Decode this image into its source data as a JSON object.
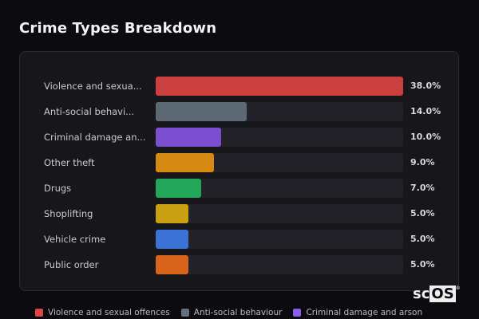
{
  "header": {
    "title": "Crime Types Breakdown"
  },
  "chart_data": {
    "type": "bar",
    "orientation": "horizontal",
    "title": "Crime Types Breakdown",
    "categories": [
      "Violence and sexua...",
      "Anti-social behavi...",
      "Criminal damage an...",
      "Other theft",
      "Drugs",
      "Shoplifting",
      "Vehicle crime",
      "Public order"
    ],
    "values": [
      38.0,
      14.0,
      10.0,
      9.0,
      7.0,
      5.0,
      5.0,
      5.0
    ],
    "value_labels": [
      "38.0%",
      "14.0%",
      "10.0%",
      "9.0%",
      "7.0%",
      "5.0%",
      "5.0%",
      "5.0%"
    ],
    "colors": [
      "#cc3f3f",
      "#5d6875",
      "#7b4fd0",
      "#d68a14",
      "#22a659",
      "#c9a012",
      "#3a72d6",
      "#d9641c"
    ],
    "xlim": [
      0,
      38
    ],
    "grid": false,
    "legend_placement": "bottom",
    "legend": [
      {
        "label": "Violence and sexual offences",
        "color": "#e04444"
      },
      {
        "label": "Anti-social behaviour",
        "color": "#66707c"
      },
      {
        "label": "Criminal damage and arson",
        "color": "#8a5cf0"
      }
    ]
  },
  "logo": {
    "text": "scOS",
    "prefix": "sc",
    "suffix": "OS",
    "mark": "®"
  }
}
